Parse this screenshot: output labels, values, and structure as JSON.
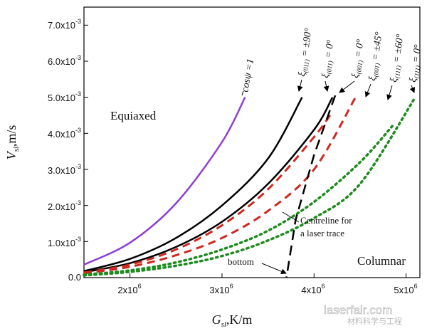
{
  "chart_data": {
    "type": "line",
    "xlabel": "G",
    "xlabel_sub": "sl",
    "xlabel_unit": ",K/m",
    "ylabel": "V",
    "ylabel_sub": "sl",
    "ylabel_unit": ",m/s",
    "xlim": [
      1500000,
      5150000
    ],
    "ylim": [
      0,
      0.0075
    ],
    "x_ticks": [
      2000000,
      3000000,
      4000000,
      5000000
    ],
    "x_tick_labels": [
      {
        "base": "2x10",
        "exp": "6"
      },
      {
        "base": "3x10",
        "exp": "6"
      },
      {
        "base": "4x10",
        "exp": "6"
      },
      {
        "base": "5x10",
        "exp": "6"
      }
    ],
    "y_ticks": [
      0,
      0.001,
      0.002,
      0.003,
      0.004,
      0.005,
      0.006,
      0.007
    ],
    "y_tick_labels": [
      {
        "base": "0.0",
        "exp": ""
      },
      {
        "base": "1.0x10",
        "exp": "-3"
      },
      {
        "base": "2.0x10",
        "exp": "-3"
      },
      {
        "base": "3.0x10",
        "exp": "-3"
      },
      {
        "base": "4.0x10",
        "exp": "-3"
      },
      {
        "base": "5.0x10",
        "exp": "-3"
      },
      {
        "base": "6.0x10",
        "exp": "-3"
      },
      {
        "base": "7.0x10",
        "exp": "-3"
      }
    ],
    "series": [
      {
        "key": "cospsi",
        "style": "solid",
        "color": "#8e3fcf",
        "width": 2.5,
        "x": [
          1500000,
          2000000,
          2500000,
          3000000,
          3250000
        ],
        "y": [
          0.00036,
          0.00097,
          0.00206,
          0.00376,
          0.005
        ]
      },
      {
        "key": "s011_90",
        "style": "solid",
        "color": "#000000",
        "width": 2.5,
        "x": [
          1500000,
          2000000,
          2500000,
          3000000,
          3500000,
          3870000
        ],
        "y": [
          0.00018,
          0.00052,
          0.0011,
          0.002,
          0.0033,
          0.005
        ]
      },
      {
        "key": "s011_0",
        "style": "solid",
        "color": "#000000",
        "width": 2.5,
        "x": [
          1500000,
          2000000,
          2500000,
          3000000,
          3500000,
          4000000,
          4200000
        ],
        "y": [
          0.00015,
          0.0004,
          0.00085,
          0.00155,
          0.0026,
          0.0041,
          0.005
        ]
      },
      {
        "key": "s001_0",
        "style": "dash",
        "color": "#cc2a22",
        "width": 3,
        "x": [
          1500000,
          2000000,
          2500000,
          3000000,
          3500000,
          4000000,
          4200000
        ],
        "y": [
          0.00014,
          0.00036,
          0.00078,
          0.00145,
          0.00245,
          0.0039,
          0.0046
        ]
      },
      {
        "key": "s001_45",
        "style": "dash",
        "color": "#cc2a22",
        "width": 3,
        "x": [
          1500000,
          2000000,
          2500000,
          3000000,
          3500000,
          4000000,
          4450000
        ],
        "y": [
          0.00012,
          0.0003,
          0.00062,
          0.0011,
          0.00185,
          0.003,
          0.005
        ]
      },
      {
        "key": "s111_60",
        "style": "dot",
        "color": "#1f8a1f",
        "width": 3.5,
        "x": [
          1500000,
          2000000,
          2500000,
          3000000,
          3500000,
          4000000,
          4500000,
          4850000
        ],
        "y": [
          8e-05,
          0.0002,
          0.00042,
          0.00078,
          0.0013,
          0.0021,
          0.0032,
          0.0042
        ]
      },
      {
        "key": "s111_0",
        "style": "dot",
        "color": "#1f8a1f",
        "width": 3.5,
        "x": [
          1500000,
          2000000,
          2500000,
          3000000,
          3500000,
          4000000,
          4500000,
          5100000
        ],
        "y": [
          6e-05,
          0.00016,
          0.00033,
          0.0006,
          0.00103,
          0.00165,
          0.0026,
          0.005
        ]
      },
      {
        "key": "centreline",
        "style": "longdash",
        "color": "#000000",
        "width": 2.5,
        "x": [
          4230000,
          4000000,
          3800000,
          3700000
        ],
        "y": [
          0.00505,
          0.0034,
          0.0016,
          0.0
        ]
      }
    ],
    "curve_labels": [
      {
        "main": "cosψ =1",
        "sub": "",
        "suffix": ""
      },
      {
        "main": "ξ",
        "sub": "(011)",
        "suffix": " = ±90°"
      },
      {
        "main": "ξ",
        "sub": "(011)",
        "suffix": " = 0°"
      },
      {
        "main": "ξ",
        "sub": "(001)",
        "suffix": " = 0°"
      },
      {
        "main": "ξ",
        "sub": "(001)",
        "suffix": " = ±45°"
      },
      {
        "main": "ξ",
        "sub": "(111)",
        "suffix": " = ±60°"
      },
      {
        "main": "ξ",
        "sub": "(111)",
        "suffix": " = 0°"
      }
    ],
    "region_labels": {
      "equiaxed": "Equiaxed",
      "columnar": "Columnar"
    },
    "annotations": {
      "centreline_1": "Centreline for",
      "centreline_2": "a laser trace",
      "bottom": "bottom"
    }
  },
  "watermark": {
    "text": "laserfair.com",
    "subtext": "材料科学与工程"
  }
}
